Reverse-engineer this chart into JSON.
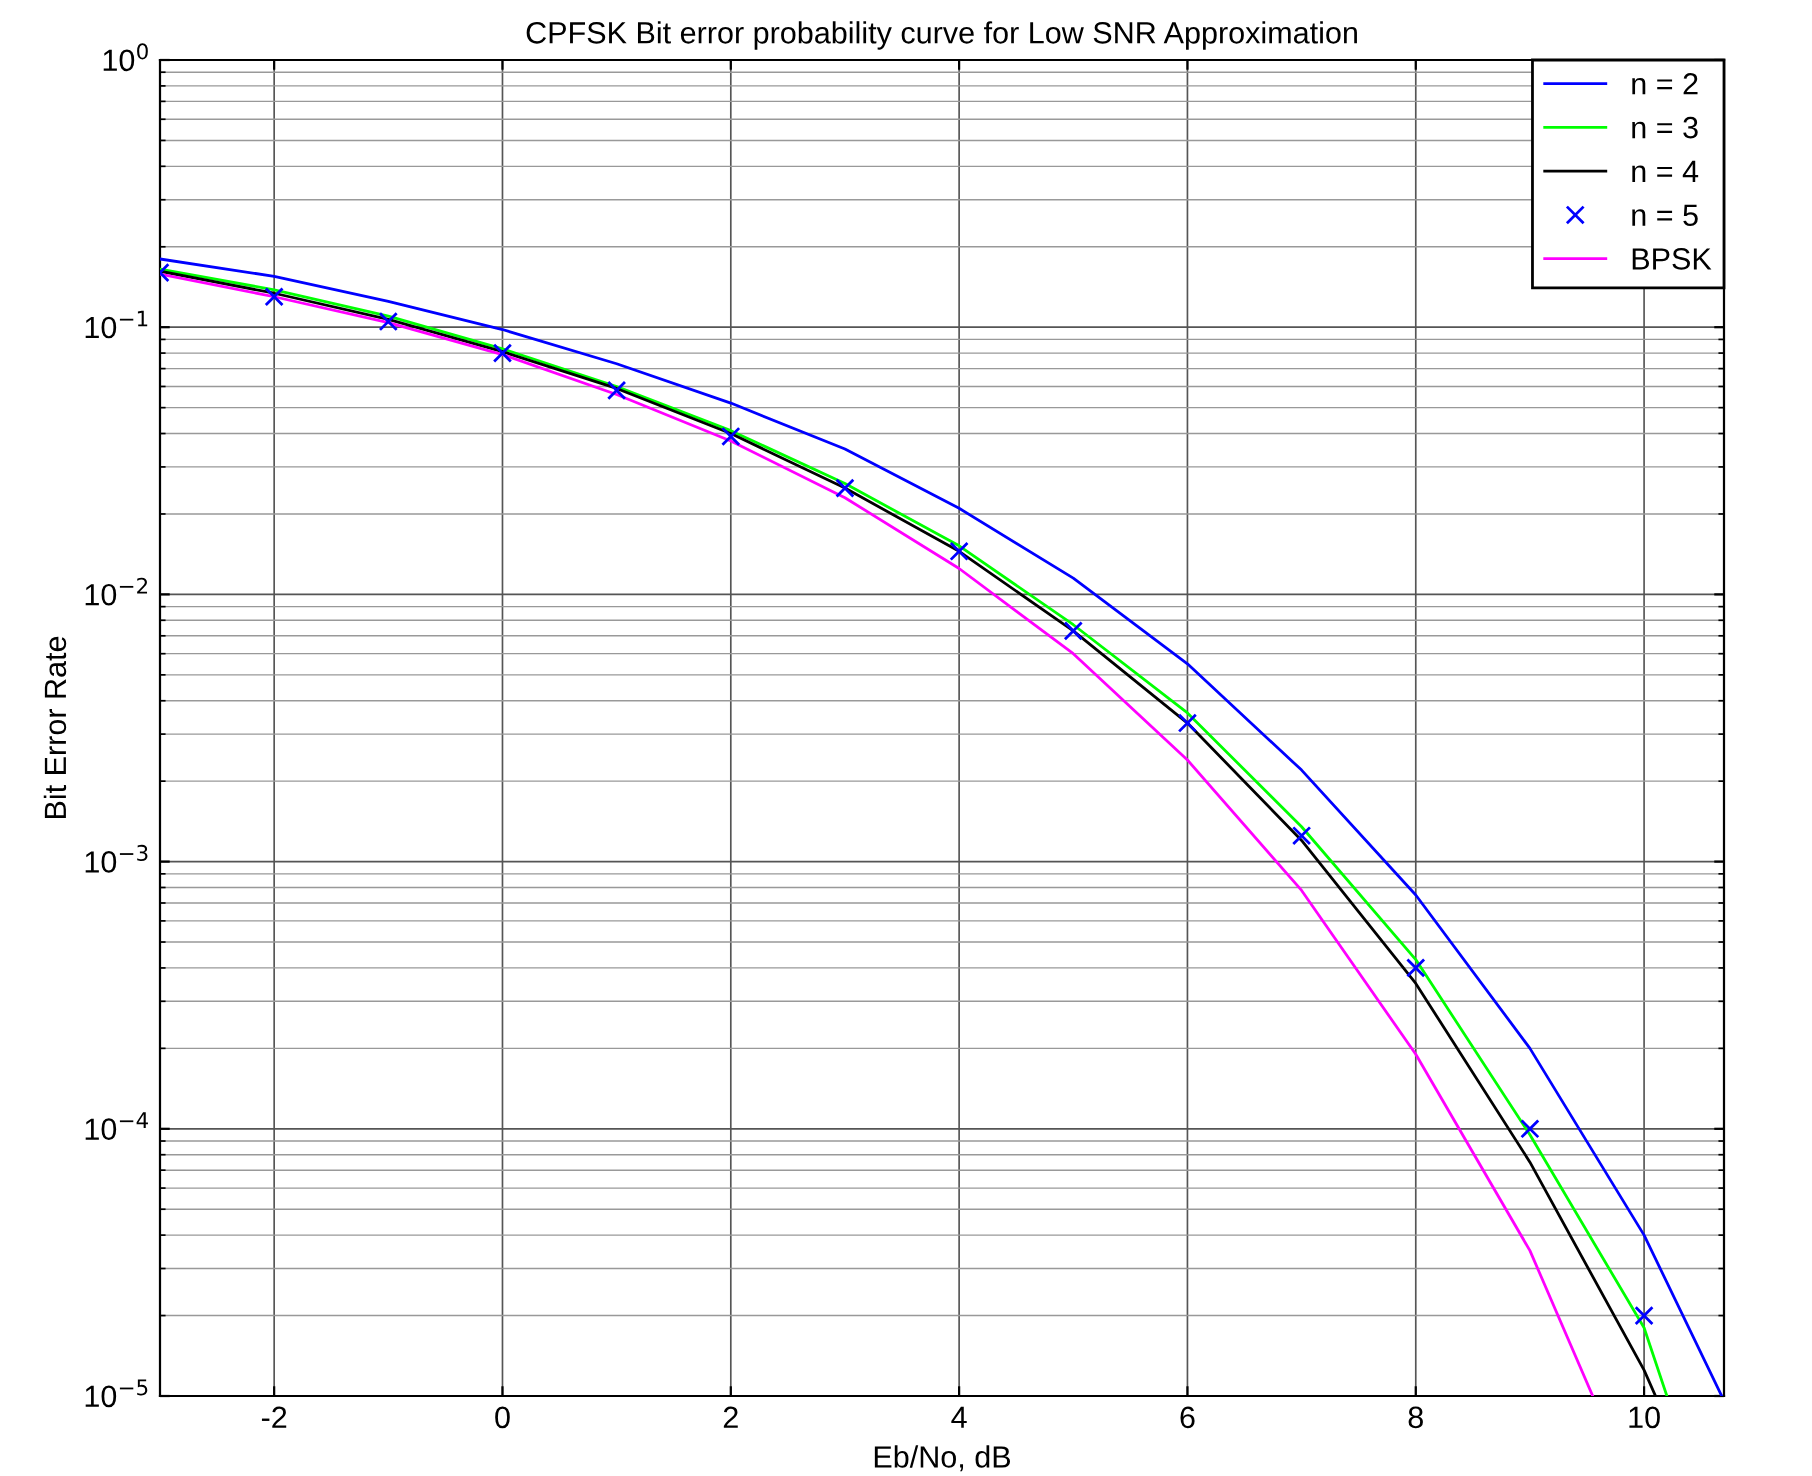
{
  "chart_data": {
    "type": "line",
    "title": "CPFSK Bit error probability curve for Low SNR Approximation",
    "xlabel": "Eb/No, dB",
    "ylabel": "Bit Error Rate",
    "log": "y",
    "grid": true,
    "legend": "top right",
    "xlim": [
      -3,
      10.7
    ],
    "xticks": [
      -2,
      0,
      2,
      4,
      6,
      8,
      10
    ],
    "ylim": [
      1e-05,
      1
    ],
    "yticks": [
      {
        "value": 1e-05,
        "label": "10$^{−5}$"
      },
      {
        "value": 0.0001,
        "label": "10$^{−4}$"
      },
      {
        "value": 0.001,
        "label": "10$^{−3}$"
      },
      {
        "value": 0.01,
        "label": "10$^{−2}$"
      },
      {
        "value": 0.1,
        "label": "10$^{−1}$"
      },
      {
        "value": 1,
        "label": "10$^{0}$"
      }
    ],
    "series": [
      {
        "name": "n = 2",
        "color": "#0000ff",
        "marker": "none",
        "x": [
          -3,
          -2,
          -1,
          0,
          1,
          2,
          3,
          4,
          5,
          6,
          7,
          8,
          9,
          10,
          10.68
        ],
        "values": [
          0.18,
          0.155,
          0.125,
          0.098,
          0.073,
          0.052,
          0.035,
          0.021,
          0.0115,
          0.0055,
          0.0022,
          0.00075,
          0.0002,
          4e-05,
          1e-05
        ]
      },
      {
        "name": "n = 3",
        "color": "#00ff00",
        "marker": "none",
        "x": [
          -3,
          -2,
          -1,
          0,
          1,
          2,
          3,
          4,
          5,
          6,
          7,
          8,
          9,
          10,
          10.2
        ],
        "values": [
          0.165,
          0.138,
          0.11,
          0.083,
          0.06,
          0.041,
          0.026,
          0.0152,
          0.0077,
          0.0036,
          0.00135,
          0.00043,
          9.5e-05,
          1.8e-05,
          1e-05
        ]
      },
      {
        "name": "n = 4",
        "color": "#000000",
        "marker": "none",
        "x": [
          -3,
          -2,
          -1,
          0,
          1,
          2,
          3,
          4,
          5,
          6,
          7,
          8,
          9,
          10,
          10.1
        ],
        "values": [
          0.162,
          0.134,
          0.107,
          0.081,
          0.059,
          0.04,
          0.025,
          0.0145,
          0.0073,
          0.0033,
          0.0012,
          0.00035,
          7.5e-05,
          1.25e-05,
          1e-05
        ]
      },
      {
        "name": "n = 5",
        "color": "#0000ff",
        "type": "scatter",
        "marker": "cross",
        "x": [
          -3,
          -2,
          -1,
          0,
          1,
          2,
          3,
          4,
          5,
          6,
          7,
          8,
          9,
          10
        ],
        "values": [
          0.16,
          0.13,
          0.105,
          0.08,
          0.058,
          0.039,
          0.025,
          0.0145,
          0.0073,
          0.0033,
          0.00125,
          0.0004,
          0.0001,
          2e-05
        ]
      },
      {
        "name": "BPSK",
        "color": "#ff00ff",
        "marker": "none",
        "x": [
          -3,
          -2,
          -1,
          0,
          1,
          2,
          3,
          4,
          5,
          6,
          7,
          8,
          9,
          9.55
        ],
        "values": [
          0.158,
          0.13,
          0.104,
          0.079,
          0.056,
          0.0375,
          0.023,
          0.0125,
          0.006,
          0.0024,
          0.00078,
          0.00019,
          3.5e-05,
          1e-05
        ]
      }
    ]
  }
}
